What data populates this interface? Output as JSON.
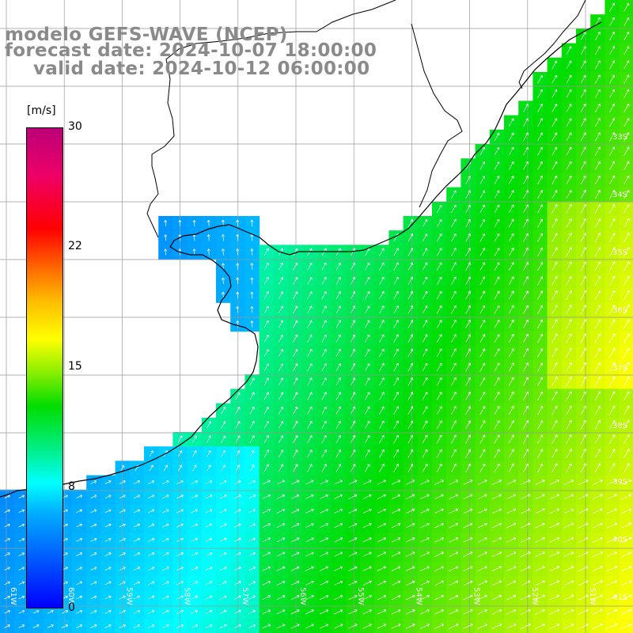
{
  "title": {
    "line1": "modelo GEFS-WAVE (NCEP)",
    "line2": "forecast date: 2024-10-07 18:00:00",
    "line3": "valid date: 2024-10-12 06:00:00"
  },
  "colorbar": {
    "unit": "[m/s]",
    "labels": [
      "30",
      "22",
      "15",
      "8",
      "0"
    ],
    "values": [
      30,
      22,
      15,
      8,
      0
    ]
  },
  "lat_labels": [
    "33S",
    "34S",
    "35S",
    "36S",
    "37S",
    "38S",
    "39S",
    "40S",
    "41S"
  ],
  "lon_labels": [
    "61W",
    "60W",
    "59W",
    "58W",
    "57W",
    "56W",
    "55W",
    "54W",
    "53W",
    "52W",
    "51W"
  ],
  "colors": {
    "land": "#ffffff",
    "coast": "#000000",
    "grid": "#999999",
    "title": "#8a8a8a",
    "arrow": "#ffffff"
  }
}
